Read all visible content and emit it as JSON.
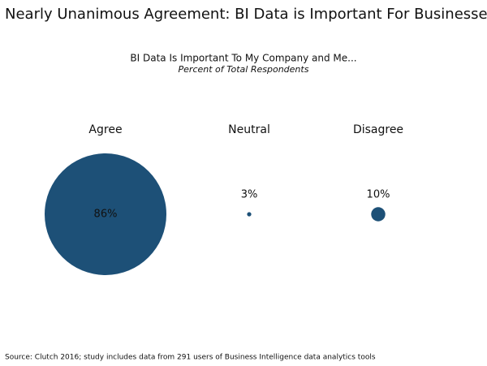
{
  "chart_data": {
    "type": "bubble",
    "title": "Nearly Unanimous Agreement: BI Data is Important For Businesses",
    "subtitle": "BI Data Is Important To My Company and Me...",
    "subtitle_italic": "Percent of Total Respondents",
    "categories": [
      "Agree",
      "Neutral",
      "Disagree"
    ],
    "values": [
      86,
      3,
      10
    ],
    "value_labels": [
      "86%",
      "3%",
      "10%"
    ],
    "color": "#1d5077",
    "source": "Source: Clutch 2016; study includes data from 291 users of Business Intelligence data analytics tools"
  }
}
